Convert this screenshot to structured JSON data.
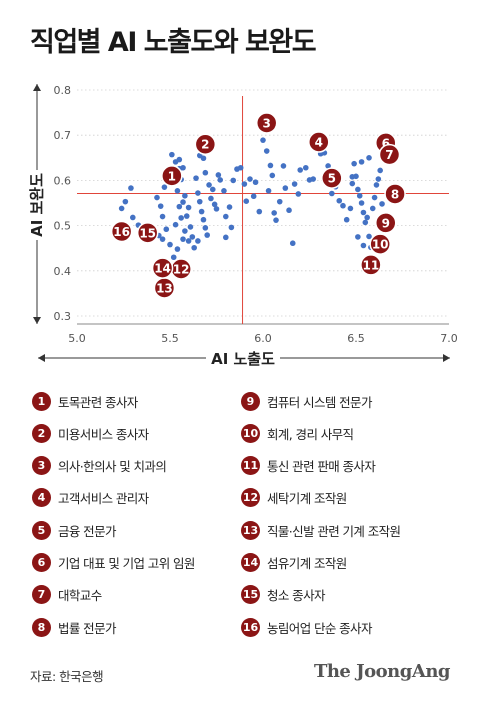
{
  "title": "직업별 AI 노출도와 보완도",
  "source": "자료: 한국은행",
  "brand": "The JoongAng",
  "colors": {
    "dot": "#4472c4",
    "badge": "#8b1515",
    "crosshair": "#e0453a",
    "grid": "#cfcfcf"
  },
  "chart_data": {
    "type": "scatter",
    "xlabel": "AI 노출도",
    "ylabel": "AI 보완도",
    "xlim": [
      5.0,
      7.0
    ],
    "ylim": [
      0.3,
      0.8
    ],
    "xticks": [
      "5.0",
      "5.5",
      "6.0",
      "6.5",
      "7.0"
    ],
    "yticks": [
      "0.3",
      "0.4",
      "0.5",
      "0.6",
      "0.7",
      "0.8"
    ],
    "reference_lines": {
      "x": 5.89,
      "y": 0.571
    },
    "highlighted": [
      {
        "n": "1",
        "label": "토목관련 종사자",
        "x": 5.51,
        "y": 0.61
      },
      {
        "n": "2",
        "label": "미용서비스 종사자",
        "x": 5.69,
        "y": 0.68
      },
      {
        "n": "3",
        "label": "의사·한의사 및 치과의",
        "x": 6.02,
        "y": 0.727
      },
      {
        "n": "4",
        "label": "고객서비스 관리자",
        "x": 6.3,
        "y": 0.685
      },
      {
        "n": "5",
        "label": "금융 전문가",
        "x": 6.37,
        "y": 0.605
      },
      {
        "n": "6",
        "label": "기업 대표 및 기업 고위 임원",
        "x": 6.66,
        "y": 0.683
      },
      {
        "n": "7",
        "label": "대학교수",
        "x": 6.68,
        "y": 0.657
      },
      {
        "n": "8",
        "label": "법률 전문가",
        "x": 6.71,
        "y": 0.57
      },
      {
        "n": "9",
        "label": "컴퓨터 시스템 전문가",
        "x": 6.66,
        "y": 0.506
      },
      {
        "n": "10",
        "label": "회계, 경리 사무직",
        "x": 6.63,
        "y": 0.459
      },
      {
        "n": "11",
        "label": "통신 관련 판매 종사자",
        "x": 6.58,
        "y": 0.413
      },
      {
        "n": "12",
        "label": "세탁기계 조작원",
        "x": 5.56,
        "y": 0.404
      },
      {
        "n": "13",
        "label": "직물·신발 관련 기계 조작원",
        "x": 5.47,
        "y": 0.362
      },
      {
        "n": "14",
        "label": "섬유기계 조작원",
        "x": 5.46,
        "y": 0.406
      },
      {
        "n": "15",
        "label": "청소 종사자",
        "x": 5.38,
        "y": 0.484
      },
      {
        "n": "16",
        "label": "농림어업 단순 종사자",
        "x": 5.24,
        "y": 0.487
      }
    ],
    "points": [
      [
        5.29,
        0.583
      ],
      [
        5.26,
        0.553
      ],
      [
        5.24,
        0.538
      ],
      [
        5.3,
        0.518
      ],
      [
        5.33,
        0.501
      ],
      [
        5.43,
        0.562
      ],
      [
        5.47,
        0.585
      ],
      [
        5.45,
        0.543
      ],
      [
        5.46,
        0.52
      ],
      [
        5.44,
        0.478
      ],
      [
        5.46,
        0.47
      ],
      [
        5.48,
        0.492
      ],
      [
        5.5,
        0.458
      ],
      [
        5.52,
        0.43
      ],
      [
        5.54,
        0.448
      ],
      [
        5.51,
        0.657
      ],
      [
        5.55,
        0.646
      ],
      [
        5.53,
        0.641
      ],
      [
        5.57,
        0.628
      ],
      [
        5.55,
        0.626
      ],
      [
        5.52,
        0.626
      ],
      [
        5.56,
        0.602
      ],
      [
        5.5,
        0.6
      ],
      [
        5.54,
        0.577
      ],
      [
        5.58,
        0.566
      ],
      [
        5.57,
        0.552
      ],
      [
        5.55,
        0.542
      ],
      [
        5.6,
        0.54
      ],
      [
        5.59,
        0.521
      ],
      [
        5.56,
        0.517
      ],
      [
        5.53,
        0.502
      ],
      [
        5.61,
        0.497
      ],
      [
        5.58,
        0.488
      ],
      [
        5.62,
        0.475
      ],
      [
        5.6,
        0.466
      ],
      [
        5.57,
        0.47
      ],
      [
        5.64,
        0.605
      ],
      [
        5.65,
        0.572
      ],
      [
        5.66,
        0.553
      ],
      [
        5.67,
        0.531
      ],
      [
        5.68,
        0.513
      ],
      [
        5.69,
        0.495
      ],
      [
        5.7,
        0.479
      ],
      [
        5.65,
        0.466
      ],
      [
        5.63,
        0.451
      ],
      [
        5.66,
        0.655
      ],
      [
        5.68,
        0.649
      ],
      [
        5.69,
        0.617
      ],
      [
        5.71,
        0.59
      ],
      [
        5.72,
        0.56
      ],
      [
        5.74,
        0.547
      ],
      [
        5.75,
        0.537
      ],
      [
        5.73,
        0.58
      ],
      [
        5.76,
        0.612
      ],
      [
        5.77,
        0.601
      ],
      [
        5.79,
        0.577
      ],
      [
        5.8,
        0.52
      ],
      [
        5.82,
        0.541
      ],
      [
        5.84,
        0.6
      ],
      [
        5.86,
        0.625
      ],
      [
        5.88,
        0.628
      ],
      [
        5.9,
        0.592
      ],
      [
        5.91,
        0.554
      ],
      [
        5.93,
        0.603
      ],
      [
        5.95,
        0.565
      ],
      [
        5.83,
        0.496
      ],
      [
        5.8,
        0.474
      ],
      [
        5.96,
        0.596
      ],
      [
        5.98,
        0.531
      ],
      [
        6.0,
        0.689
      ],
      [
        6.02,
        0.665
      ],
      [
        6.04,
        0.633
      ],
      [
        6.05,
        0.611
      ],
      [
        6.03,
        0.577
      ],
      [
        6.06,
        0.528
      ],
      [
        6.07,
        0.512
      ],
      [
        6.09,
        0.553
      ],
      [
        6.12,
        0.583
      ],
      [
        6.14,
        0.534
      ],
      [
        6.11,
        0.632
      ],
      [
        6.17,
        0.592
      ],
      [
        6.19,
        0.57
      ],
      [
        6.16,
        0.461
      ],
      [
        6.2,
        0.623
      ],
      [
        6.23,
        0.628
      ],
      [
        6.25,
        0.601
      ],
      [
        6.27,
        0.603
      ],
      [
        6.29,
        0.676
      ],
      [
        6.31,
        0.659
      ],
      [
        6.33,
        0.661
      ],
      [
        6.35,
        0.632
      ],
      [
        6.37,
        0.571
      ],
      [
        6.39,
        0.586
      ],
      [
        6.41,
        0.555
      ],
      [
        6.43,
        0.544
      ],
      [
        6.45,
        0.513
      ],
      [
        6.47,
        0.538
      ],
      [
        6.48,
        0.593
      ],
      [
        6.49,
        0.637
      ],
      [
        6.5,
        0.609
      ],
      [
        6.51,
        0.58
      ],
      [
        6.52,
        0.566
      ],
      [
        6.53,
        0.55
      ],
      [
        6.54,
        0.529
      ],
      [
        6.55,
        0.507
      ],
      [
        6.56,
        0.518
      ],
      [
        6.57,
        0.476
      ],
      [
        6.58,
        0.452
      ],
      [
        6.59,
        0.538
      ],
      [
        6.6,
        0.562
      ],
      [
        6.61,
        0.59
      ],
      [
        6.62,
        0.603
      ],
      [
        6.63,
        0.622
      ],
      [
        6.64,
        0.548
      ],
      [
        6.57,
        0.65
      ],
      [
        6.53,
        0.641
      ],
      [
        6.48,
        0.608
      ],
      [
        6.51,
        0.475
      ],
      [
        6.54,
        0.456
      ]
    ]
  }
}
